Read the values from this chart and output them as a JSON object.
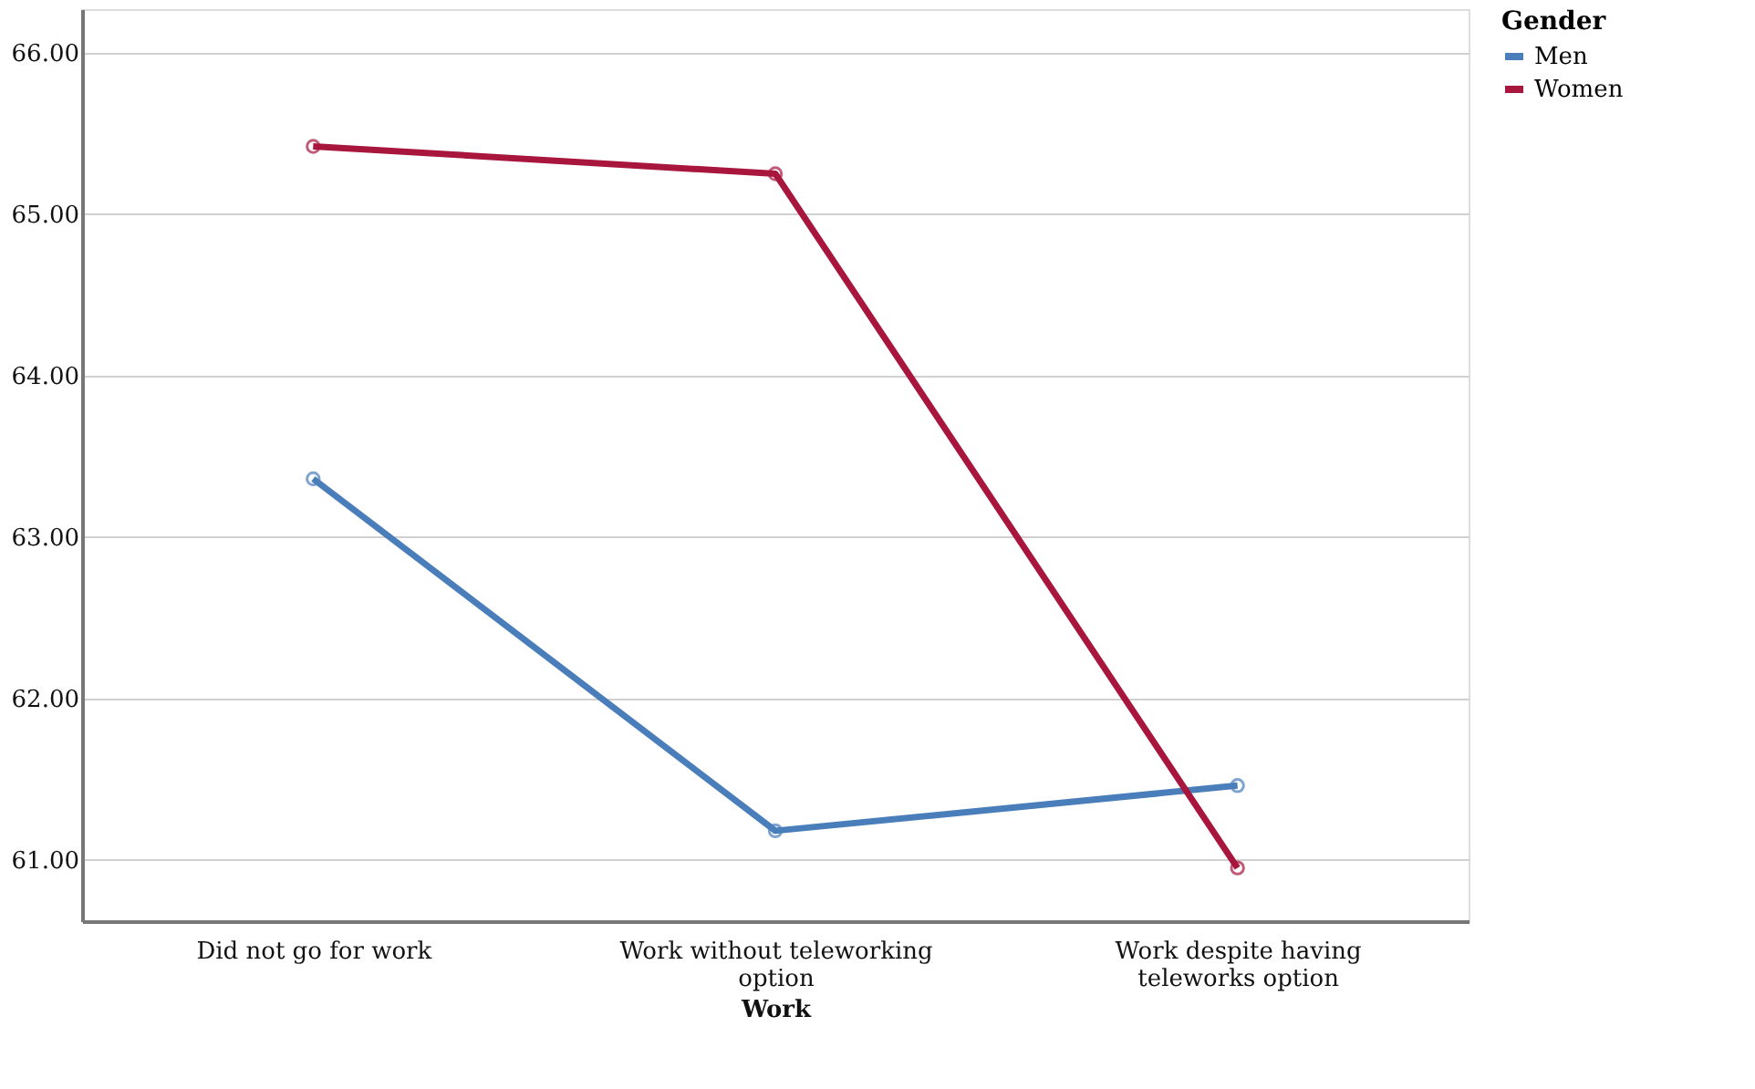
{
  "chart_data": {
    "type": "line",
    "xlabel": "Work",
    "legend_title": "Gender",
    "categories": [
      "Did not go for work",
      "Work without teleworking option",
      "Work despite having teleworks option"
    ],
    "series": [
      {
        "name": "Men",
        "color": "#4a7ebb",
        "values": [
          63.36,
          61.18,
          61.46
        ]
      },
      {
        "name": "Women",
        "color": "#a8163e",
        "values": [
          65.42,
          65.25,
          60.95
        ]
      }
    ],
    "ylim": [
      60.62,
      66.27
    ],
    "yticks": [
      {
        "value": 61,
        "label": "61.00"
      },
      {
        "value": 62,
        "label": "62.00"
      },
      {
        "value": 63,
        "label": "63.00"
      },
      {
        "value": 64,
        "label": "64.00"
      },
      {
        "value": 65,
        "label": "65.00"
      },
      {
        "value": 66,
        "label": "66.00"
      }
    ],
    "grid": "y",
    "legend": "top right",
    "marker": "circle",
    "line_style": "solid"
  }
}
